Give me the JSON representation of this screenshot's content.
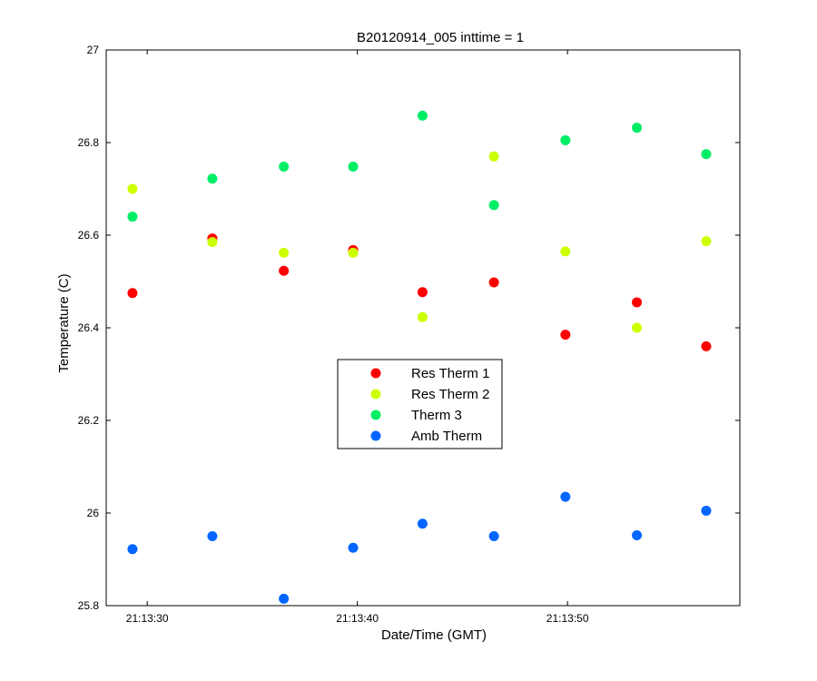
{
  "chart_data": {
    "type": "scatter",
    "title": "B20120914_005 inttime = 1",
    "xlabel": "Date/Time (GMT)",
    "ylabel": "Temperature (C)",
    "xlim": [
      "21:13:28.05",
      "21:13:58.2"
    ],
    "ylim": [
      25.8,
      27
    ],
    "x_ticks": [
      "21:13:30",
      "21:13:40",
      "21:13:50"
    ],
    "y_ticks": [
      "25.8",
      "26",
      "26.2",
      "26.4",
      "26.6",
      "26.8",
      "27"
    ],
    "grid": false,
    "legend_position": "center",
    "x": [
      "21:13:29.3",
      "21:13:33.1",
      "21:13:36.5",
      "21:13:39.8",
      "21:13:43.1",
      "21:13:46.5",
      "21:13:49.9",
      "21:13:53.3",
      "21:13:56.6"
    ],
    "series": [
      {
        "name": "Res Therm 1",
        "color": "#ff0000",
        "values": [
          26.475,
          26.593,
          26.523,
          26.568,
          26.477,
          26.498,
          26.385,
          26.455,
          26.36
        ]
      },
      {
        "name": "Res Therm 2",
        "color": "#ccff00",
        "values": [
          26.7,
          26.585,
          26.562,
          26.562,
          26.423,
          26.77,
          26.565,
          26.4,
          26.587
        ]
      },
      {
        "name": "Therm 3",
        "color": "#00ee66",
        "values": [
          26.64,
          26.722,
          26.748,
          26.748,
          26.858,
          26.665,
          26.805,
          26.832,
          26.775
        ]
      },
      {
        "name": "Amb Therm",
        "color": "#0066ff",
        "values": [
          25.922,
          25.95,
          25.815,
          25.925,
          25.977,
          25.95,
          26.035,
          25.952,
          26.005
        ]
      }
    ]
  }
}
